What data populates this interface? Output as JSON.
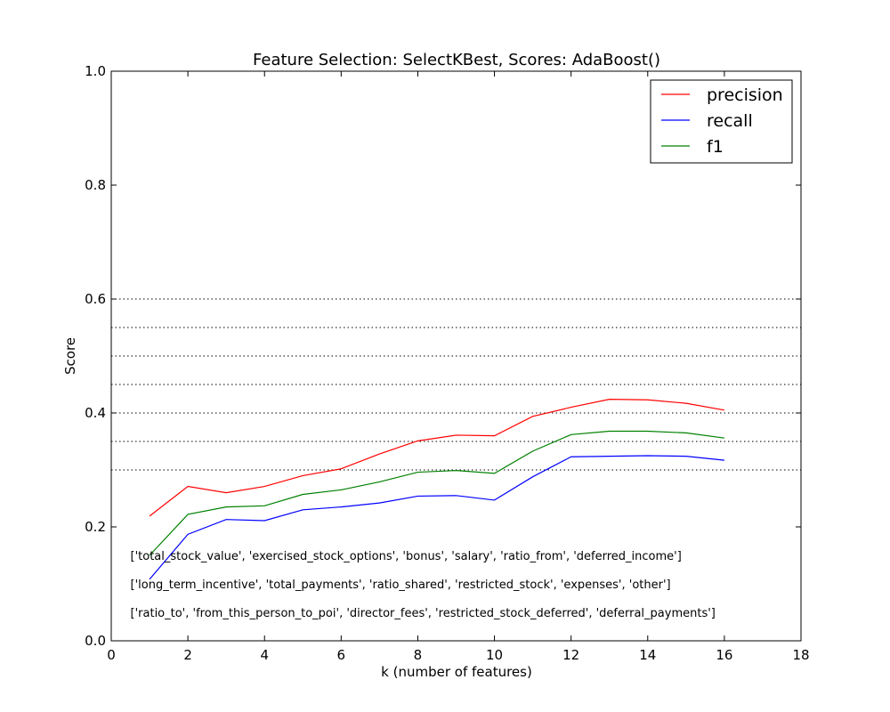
{
  "chart_data": {
    "type": "line",
    "title": "Feature Selection: SelectKBest, Scores: AdaBoost()",
    "xlabel": "k (number of features)",
    "ylabel": "Score",
    "xlim": [
      0,
      18
    ],
    "ylim": [
      0.0,
      1.0
    ],
    "x_ticks": [
      "0",
      "2",
      "4",
      "6",
      "8",
      "10",
      "12",
      "14",
      "16",
      "18"
    ],
    "y_ticks": [
      "0.0",
      "0.2",
      "0.4",
      "0.6",
      "0.8",
      "1.0"
    ],
    "x": [
      1,
      2,
      3,
      4,
      5,
      6,
      7,
      8,
      9,
      10,
      11,
      12,
      13,
      14,
      15,
      16
    ],
    "series": [
      {
        "name": "precision",
        "color": "#ff0000",
        "values": [
          0.219,
          0.271,
          0.26,
          0.271,
          0.29,
          0.302,
          0.328,
          0.351,
          0.361,
          0.36,
          0.394,
          0.41,
          0.424,
          0.423,
          0.417,
          0.405
        ]
      },
      {
        "name": "recall",
        "color": "#0000ff",
        "values": [
          0.108,
          0.187,
          0.213,
          0.211,
          0.23,
          0.235,
          0.242,
          0.254,
          0.255,
          0.247,
          0.288,
          0.323,
          0.324,
          0.325,
          0.324,
          0.317
        ]
      },
      {
        "name": "f1",
        "color": "#008000",
        "values": [
          0.15,
          0.222,
          0.235,
          0.237,
          0.257,
          0.265,
          0.279,
          0.296,
          0.299,
          0.294,
          0.333,
          0.362,
          0.368,
          0.368,
          0.365,
          0.356
        ]
      }
    ],
    "reference_lines": [
      0.3,
      0.35,
      0.4,
      0.45,
      0.5,
      0.55,
      0.6
    ],
    "legend_position": "top-right",
    "grid": false,
    "annotations": [
      {
        "text": "['total_stock_value', 'exercised_stock_options', 'bonus', 'salary', 'ratio_from', 'deferred_income']",
        "x": 0.5,
        "y": 0.15
      },
      {
        "text": "['long_term_incentive', 'total_payments', 'ratio_shared', 'restricted_stock', 'expenses', 'other']",
        "x": 0.5,
        "y": 0.1
      },
      {
        "text": "['ratio_to', 'from_this_person_to_poi', 'director_fees', 'restricted_stock_deferred', 'deferral_payments']",
        "x": 0.5,
        "y": 0.05
      }
    ]
  }
}
